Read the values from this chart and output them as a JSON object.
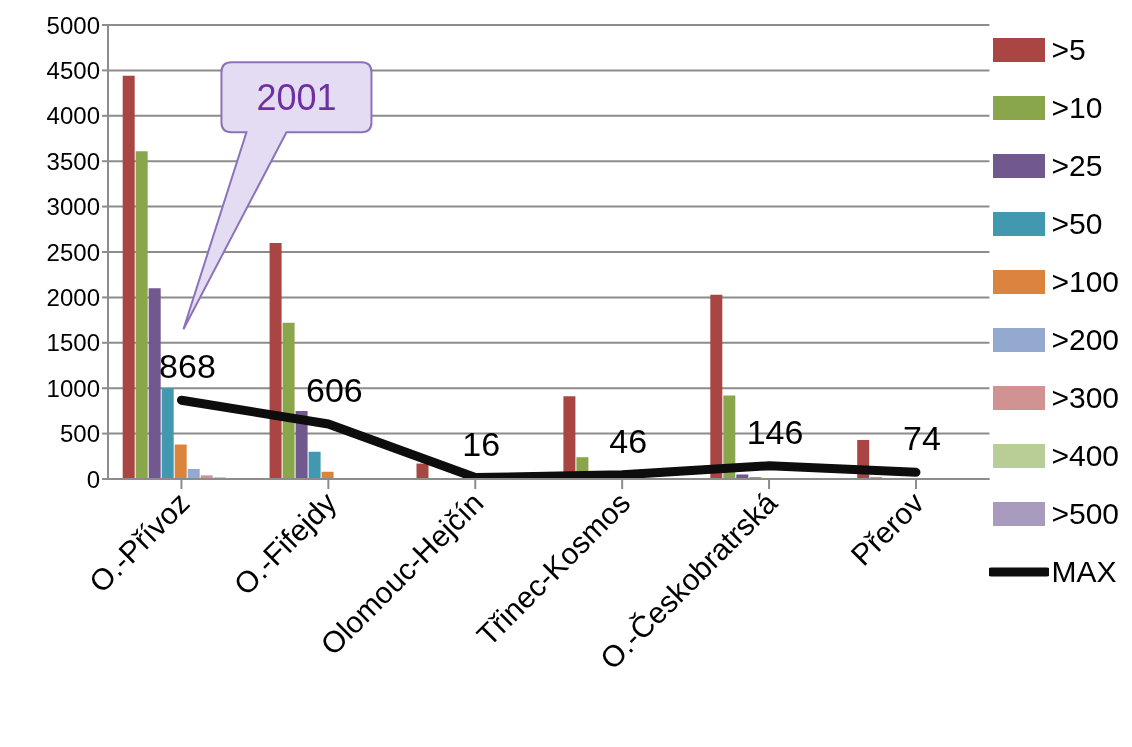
{
  "chart_data": {
    "type": "bar",
    "categories": [
      "O.-Přívoz",
      "O.-Fifejdy",
      "Olomouc-Hejčín",
      "Třinec-Kosmos",
      "O.-Českobratrská",
      "Přerov"
    ],
    "series": [
      {
        "name": ">5",
        "color": "#a94643",
        "values": [
          4440,
          2600,
          170,
          910,
          2030,
          430
        ]
      },
      {
        "name": ">10",
        "color": "#8aa64b",
        "values": [
          3610,
          1720,
          10,
          240,
          920,
          20
        ]
      },
      {
        "name": ">25",
        "color": "#71588f",
        "values": [
          2100,
          750,
          0,
          0,
          50,
          0
        ]
      },
      {
        "name": ">50",
        "color": "#4298af",
        "values": [
          1000,
          300,
          0,
          0,
          20,
          0
        ]
      },
      {
        "name": ">100",
        "color": "#db843d",
        "values": [
          380,
          80,
          0,
          0,
          0,
          0
        ]
      },
      {
        "name": ">200",
        "color": "#93a9cf",
        "values": [
          110,
          0,
          0,
          0,
          0,
          0
        ]
      },
      {
        "name": ">300",
        "color": "#d19392",
        "values": [
          40,
          0,
          0,
          0,
          0,
          0
        ]
      },
      {
        "name": ">400",
        "color": "#b9cd96",
        "values": [
          20,
          0,
          0,
          0,
          0,
          0
        ]
      },
      {
        "name": ">500",
        "color": "#a99bbd",
        "values": [
          10,
          0,
          0,
          0,
          0,
          0
        ]
      },
      {
        "name": "MAX",
        "type": "line",
        "color": "#0d0d0d",
        "values": [
          868,
          606,
          16,
          46,
          146,
          74
        ],
        "value_labels": [
          "868",
          "606",
          "16",
          "46",
          "146",
          "74"
        ]
      }
    ],
    "ylim": [
      0,
      5000
    ],
    "yticks": [
      0,
      500,
      1000,
      1500,
      2000,
      2500,
      3000,
      3500,
      4000,
      4500,
      5000
    ],
    "grid": "y",
    "legend": "right",
    "marker": "none",
    "line_style": "solid",
    "annotations": [
      "2001"
    ]
  }
}
